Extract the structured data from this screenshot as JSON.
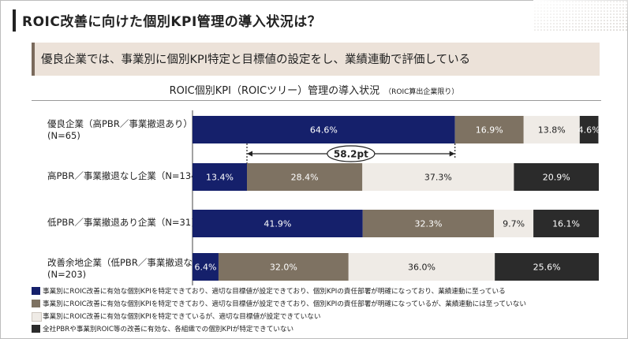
{
  "title": "ROIC改善に向けた個別KPI管理の導入状況は？",
  "banner": "優良企業では、事業別に個別KPI特定と目標値の設定をし、業績連動で評価している",
  "chart_data": {
    "type": "bar",
    "orientation": "horizontal-stacked-100",
    "title": "ROIC個別KPI（ROICツリー）管理の導入状況",
    "title_note": "（ROIC算出企業限り）",
    "categories": [
      {
        "line1": "優良企業（高PBR／事業撤退あり）",
        "line2": "(N=65)"
      },
      {
        "line1": "高PBR／事業撤退なし企業（N=134)",
        "line2": ""
      },
      {
        "line1": "低PBR／事業撤退あり企業（N=31)",
        "line2": ""
      },
      {
        "line1": "改善余地企業（低PBR／事業撤退なし）",
        "line2": "(N=203)"
      }
    ],
    "series": [
      {
        "name": "事業別にROIC改善に有効な個別KPIを特定できており、適切な目標値が設定できており、個別KPIの責任部署が明確になっており、業績連動に至っている",
        "color": "#15206b",
        "text_color": "#ffffff",
        "values": [
          64.6,
          13.4,
          41.9,
          6.4
        ],
        "labels": [
          "64.6%",
          "13.4%",
          "41.9%",
          "6.4%"
        ]
      },
      {
        "name": "事業別にROIC改善に有効な個別KPIを特定できており、適切な目標値が設定できており、個別KPIの責任部署が明確になっているが、業績連動には至っていない",
        "color": "#7e7262",
        "text_color": "#ffffff",
        "values": [
          16.9,
          28.4,
          32.3,
          32.0
        ],
        "labels": [
          "16.9%",
          "28.4%",
          "32.3%",
          "32.0%"
        ]
      },
      {
        "name": "事業別にROIC改善に有効な個別KPIを特定できているが、適切な目標値が設定できていない",
        "color": "#efebe6",
        "text_color": "#222222",
        "values": [
          13.8,
          37.3,
          9.7,
          36.0
        ],
        "labels": [
          "13.8%",
          "37.3%",
          "9.7%",
          "36.0%"
        ]
      },
      {
        "name": "全社PBRや事業別ROIC等の改善に有効な、各組織での個別KPIが特定できていない",
        "color": "#2b2b2b",
        "text_color": "#ffffff",
        "values": [
          4.6,
          20.9,
          16.1,
          25.6
        ],
        "labels": [
          "4.6%",
          "20.9%",
          "16.1%",
          "25.6%"
        ]
      }
    ],
    "annotation": {
      "label": "58.2pt",
      "from_row": 1,
      "to_row": 0,
      "series_index": 0
    },
    "xlim": [
      0,
      100
    ]
  }
}
